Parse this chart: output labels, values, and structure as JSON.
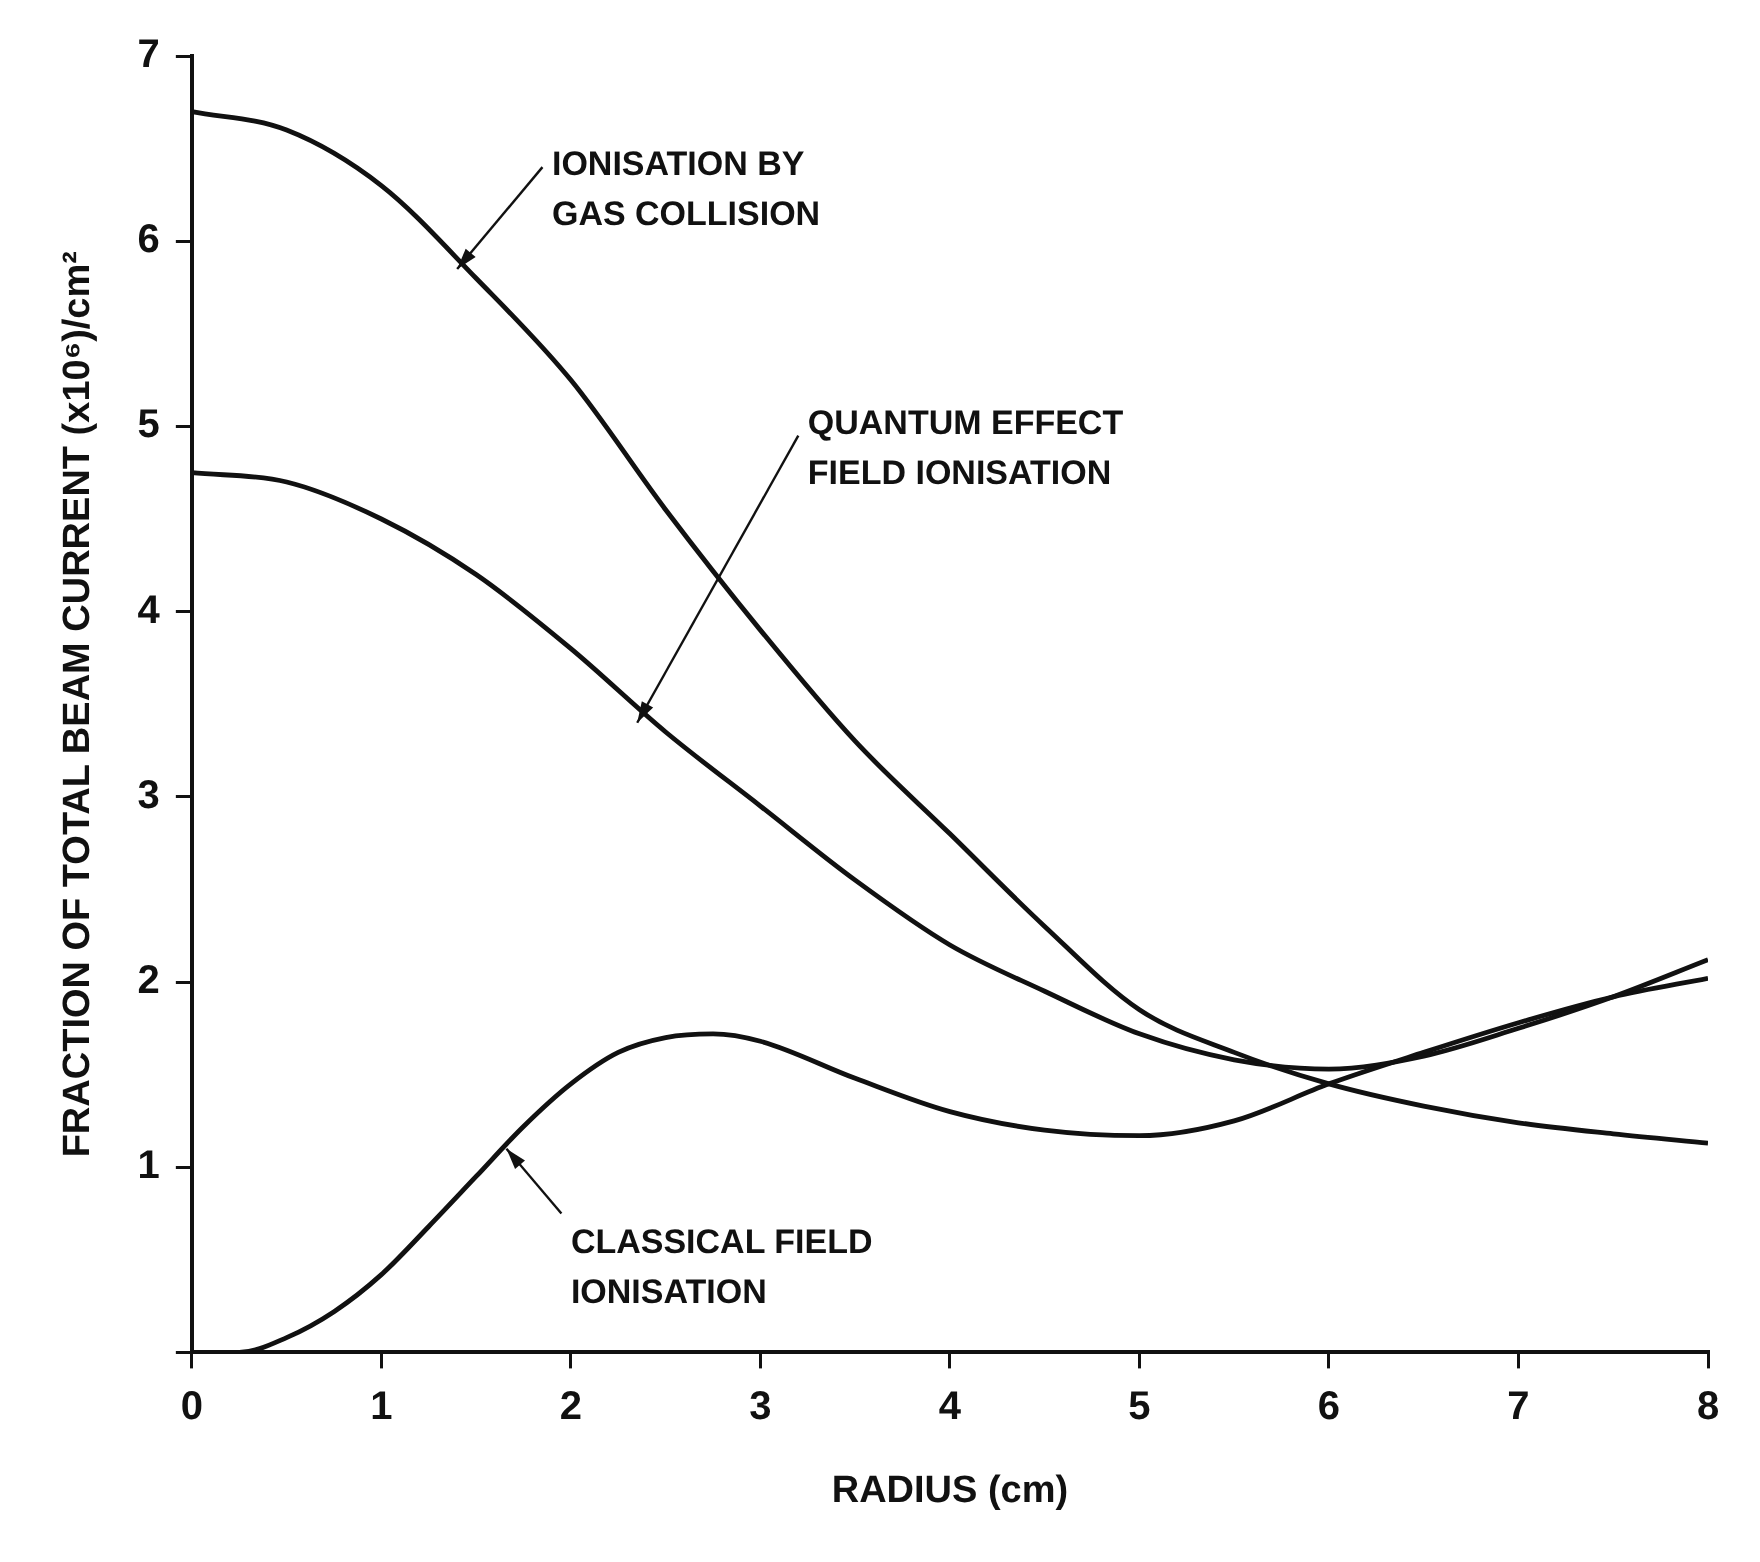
{
  "chart_data": {
    "type": "line",
    "xlabel": "RADIUS (cm)",
    "ylabel": "FRACTION OF TOTAL BEAM CURRENT (x10⁶)/cm²",
    "xlim": [
      0,
      8
    ],
    "ylim": [
      0,
      7
    ],
    "xticks": [
      0,
      1,
      2,
      3,
      4,
      5,
      6,
      7,
      8
    ],
    "yticks": [
      {
        "value": 0,
        "label": null
      },
      1,
      2,
      3,
      4,
      5,
      6,
      7
    ],
    "grid": false,
    "legend": false,
    "marker": "none",
    "line_style": "solid",
    "series": [
      {
        "name": "IONISATION BY GAS COLLISION",
        "color": "#111111",
        "x": [
          0,
          0.5,
          1,
          1.5,
          2,
          2.5,
          3,
          3.5,
          4,
          4.5,
          5,
          5.5,
          6,
          6.5,
          7,
          7.5,
          8
        ],
        "values": [
          6.7,
          6.6,
          6.3,
          5.8,
          5.25,
          4.55,
          3.9,
          3.3,
          2.8,
          2.3,
          1.85,
          1.62,
          1.45,
          1.33,
          1.24,
          1.18,
          1.13
        ]
      },
      {
        "name": "QUANTUM EFFECT FIELD IONISATION",
        "color": "#111111",
        "x": [
          0,
          0.5,
          1,
          1.5,
          2,
          2.5,
          3,
          3.5,
          4,
          4.5,
          5,
          5.5,
          6,
          6.5,
          7,
          7.5,
          8
        ],
        "values": [
          4.75,
          4.7,
          4.5,
          4.2,
          3.8,
          3.35,
          2.95,
          2.55,
          2.2,
          1.95,
          1.72,
          1.58,
          1.53,
          1.6,
          1.75,
          1.92,
          2.12
        ]
      },
      {
        "name": "CLASSICAL FIELD IONISATION",
        "color": "#111111",
        "x": [
          0,
          0.25,
          0.5,
          0.75,
          1,
          1.25,
          1.5,
          1.75,
          2,
          2.25,
          2.5,
          2.75,
          3,
          3.5,
          4,
          4.5,
          5,
          5.5,
          6,
          6.5,
          7,
          7.5,
          8
        ],
        "values": [
          0,
          0,
          0.08,
          0.22,
          0.42,
          0.68,
          0.95,
          1.22,
          1.45,
          1.62,
          1.7,
          1.72,
          1.68,
          1.48,
          1.3,
          1.2,
          1.17,
          1.25,
          1.45,
          1.62,
          1.78,
          1.92,
          2.02
        ]
      }
    ]
  }
}
